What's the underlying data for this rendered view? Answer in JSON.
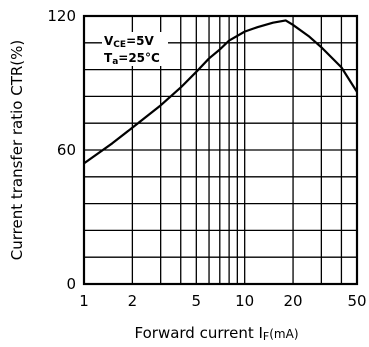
{
  "chart_data": {
    "type": "line",
    "xlabel_main": "Forward current I",
    "xlabel_sub": "F",
    "xlabel_unit": "(mA)",
    "ylabel": "Current transfer ratio CTR(%)",
    "x_scale": "log",
    "xlim": [
      1,
      50
    ],
    "ylim": [
      0,
      120
    ],
    "x_ticks": [
      1,
      2,
      5,
      10,
      20,
      50
    ],
    "x_tick_labels": [
      "1",
      "2",
      "5",
      "10",
      "20",
      "50"
    ],
    "y_ticks": [
      0,
      60,
      120
    ],
    "y_tick_labels": [
      "0",
      "60",
      "120"
    ],
    "x_grid": [
      1,
      2,
      3,
      4,
      5,
      6,
      7,
      8,
      9,
      10,
      20,
      30,
      40,
      50
    ],
    "y_grid": [
      0,
      12,
      24,
      36,
      48,
      60,
      72,
      84,
      96,
      108,
      120
    ],
    "annotation": {
      "line1_main": "V",
      "line1_sub": "CE",
      "line1_rest": "=5V",
      "line2_main": "T",
      "line2_sub": "a",
      "line2_rest": "=25°C"
    },
    "series": [
      {
        "x": [
          1,
          1.5,
          2,
          3,
          4,
          5,
          6,
          7,
          8,
          10,
          12,
          15,
          18,
          20,
          25,
          30,
          40,
          50
        ],
        "y": [
          54,
          63,
          70,
          80,
          88,
          95,
          101,
          105,
          109,
          113,
          115,
          117,
          118,
          116,
          111,
          106,
          97,
          86
        ]
      }
    ]
  }
}
